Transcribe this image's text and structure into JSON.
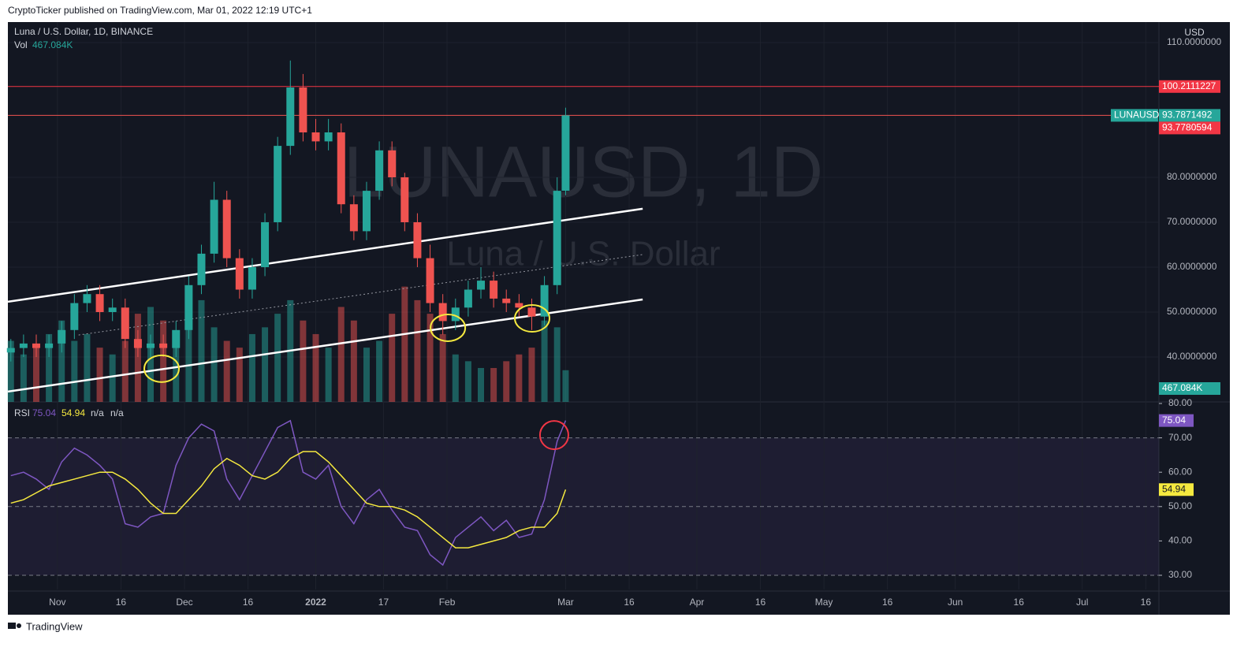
{
  "header": {
    "publisher": "CryptoTicker published on TradingView.com, Mar 01, 2022 12:19 UTC+1"
  },
  "footer": {
    "brand": "TradingView"
  },
  "chart_data": {
    "type": "candlestick",
    "title": "Luna / U.S. Dollar, 1D, BINANCE",
    "watermark": "LUNAUSD, 1D",
    "watermark_subtitle": "Luna / U.S. Dollar",
    "currency": "USD",
    "symbol": "LUNAUSD",
    "volume_legend": "Vol",
    "up_color": "#26a69a",
    "down_color": "#ef5350",
    "x": [
      -11,
      -8,
      -5,
      -2,
      1,
      4,
      7,
      10,
      13,
      16,
      19,
      22,
      25,
      28,
      31,
      34,
      37,
      40,
      43,
      46,
      49,
      52,
      55,
      58,
      61,
      64,
      67,
      70,
      73,
      76,
      79,
      82,
      85,
      88,
      91,
      94,
      97,
      100,
      103,
      106,
      109,
      112,
      115,
      118,
      120
    ],
    "open": [
      41,
      42,
      43,
      42,
      43,
      46,
      52,
      54,
      50,
      51,
      44,
      42,
      43,
      42,
      46,
      56,
      63,
      75,
      62,
      55,
      60,
      70,
      87,
      100,
      90,
      88,
      90,
      74,
      68,
      77,
      86,
      80,
      70,
      62,
      52,
      48,
      51,
      55,
      57,
      53,
      52,
      51,
      49,
      56,
      77
    ],
    "high": [
      44,
      45,
      45,
      45,
      48,
      54,
      56,
      56,
      53,
      53,
      46,
      45,
      45,
      48,
      58,
      65,
      79,
      77,
      64,
      62,
      72,
      89,
      106,
      103,
      93,
      93,
      92,
      76,
      79,
      88,
      88,
      81,
      72,
      65,
      54,
      53,
      57,
      60,
      59,
      55,
      54,
      53,
      58,
      80,
      95.5
    ],
    "low": [
      39,
      40,
      40,
      40,
      41,
      44,
      50,
      48,
      48,
      42,
      40,
      40,
      40,
      40,
      44,
      54,
      61,
      60,
      53,
      53,
      58,
      68,
      85,
      88,
      86,
      86,
      72,
      66,
      66,
      75,
      78,
      68,
      60,
      50,
      45,
      46,
      49,
      53,
      51,
      50,
      49,
      46,
      47,
      54,
      76
    ],
    "close": [
      42,
      43,
      42,
      43,
      46,
      52,
      54,
      50,
      51,
      44,
      42,
      43,
      42,
      46,
      56,
      63,
      75,
      62,
      55,
      60,
      70,
      87,
      100,
      90,
      88,
      90,
      74,
      68,
      77,
      86,
      80,
      70,
      62,
      52,
      48,
      51,
      55,
      57,
      53,
      52,
      51,
      49,
      56,
      77,
      93.7871492
    ],
    "xlim": [
      -11.7,
      260.1
    ],
    "xticks": [
      {
        "value": 0,
        "label": "Nov"
      },
      {
        "value": 15,
        "label": "16"
      },
      {
        "value": 30,
        "label": "Dec"
      },
      {
        "value": 45,
        "label": "16"
      },
      {
        "value": 61,
        "label": "2022"
      },
      {
        "value": 77,
        "label": "17"
      },
      {
        "value": 92,
        "label": "Feb"
      },
      {
        "value": 120,
        "label": "Mar"
      },
      {
        "value": 135,
        "label": "16"
      },
      {
        "value": 151,
        "label": "Apr"
      },
      {
        "value": 166,
        "label": "16"
      },
      {
        "value": 181,
        "label": "May"
      },
      {
        "value": 196,
        "label": "16"
      },
      {
        "value": 212,
        "label": "Jun"
      },
      {
        "value": 227,
        "label": "16"
      },
      {
        "value": 242,
        "label": "Jul"
      },
      {
        "value": 257,
        "label": "16"
      }
    ],
    "ylim": [
      30,
      114.56
    ],
    "yticks": [
      {
        "value": 40,
        "label": "40.0000000"
      },
      {
        "value": 50,
        "label": "50.0000000"
      },
      {
        "value": 60,
        "label": "60.0000000"
      },
      {
        "value": 70,
        "label": "70.0000000"
      },
      {
        "value": 80,
        "label": "80.0000000"
      },
      {
        "value": 110,
        "label": "110.0000000"
      }
    ],
    "price_lines": [
      {
        "value": 100.2111227,
        "color": "#f23645"
      }
    ],
    "price_labels": [
      {
        "value": 93.7780594,
        "color": "#f23645"
      }
    ],
    "volume": {
      "values": [
        900,
        700,
        800,
        1000,
        1200,
        900,
        1000,
        800,
        700,
        900,
        1300,
        1400,
        1200,
        1000,
        1300,
        1500,
        1100,
        900,
        800,
        1000,
        1100,
        1300,
        1500,
        1200,
        1000,
        800,
        1400,
        1200,
        800,
        900,
        1300,
        1700,
        1500,
        1300,
        1000,
        700,
        600,
        500,
        500,
        600,
        700,
        800,
        1200,
        1100,
        467.084
      ],
      "last_label": "467.084K",
      "ylim": [
        0,
        5600
      ]
    },
    "trendlines": [
      {
        "x": [
          -11.7,
          138.2
        ],
        "y": [
          52.3,
          73
        ],
        "color": "#ffffff",
        "dash": false
      },
      {
        "x": [
          -11.7,
          138.2
        ],
        "y": [
          32.3,
          52.8
        ],
        "color": "#ffffff",
        "dash": false
      },
      {
        "x": [
          5,
          138.2
        ],
        "y": [
          44.9,
          62.8
        ],
        "color": "#9598a1",
        "dash": true
      }
    ],
    "highlights": [
      {
        "x": 24.6,
        "y": 37.4,
        "color": "#f5e93f"
      },
      {
        "x": 92.2,
        "y": 46.5,
        "color": "#f5e93f"
      },
      {
        "x": 112.1,
        "y": 48.6,
        "color": "#f5e93f"
      }
    ],
    "rsi": {
      "name": "RSI",
      "color": "#7e57c2",
      "values": [
        59,
        60,
        58,
        55,
        63,
        67,
        65,
        62,
        58,
        45,
        44,
        47,
        48,
        62,
        70,
        74,
        72,
        58,
        52,
        59,
        66,
        73,
        75,
        60,
        58,
        62,
        50,
        45,
        52,
        55,
        49,
        44,
        43,
        36,
        33,
        41,
        44,
        47,
        43,
        46,
        41,
        42,
        52,
        69,
        75.04
      ],
      "ma": {
        "color": "#f5e93f",
        "values": [
          51,
          52,
          54,
          56,
          57,
          58,
          59,
          60,
          60,
          58,
          55,
          51,
          48,
          48,
          52,
          56,
          61,
          64,
          62,
          59,
          58,
          60,
          64,
          66,
          66,
          63,
          59,
          55,
          51,
          50,
          50,
          49,
          47,
          44,
          41,
          38,
          38,
          39,
          40,
          41,
          43,
          44,
          44,
          48,
          54.94
        ]
      },
      "legend_extra": [
        "n/a",
        "n/a"
      ],
      "ylim": [
        25.87,
        80
      ],
      "yticks": [
        {
          "value": 30,
          "label": "30.00"
        },
        {
          "value": 40,
          "label": "40.00"
        },
        {
          "value": 50,
          "label": "50.00"
        },
        {
          "value": 60,
          "label": "60.00"
        },
        {
          "value": 70,
          "label": "70.00"
        },
        {
          "value": 80,
          "label": "80.00"
        }
      ],
      "levels": [
        70,
        50,
        30
      ],
      "highlights": [
        {
          "x": 117.3,
          "y": 70.8,
          "color": "#f23645"
        }
      ]
    }
  }
}
